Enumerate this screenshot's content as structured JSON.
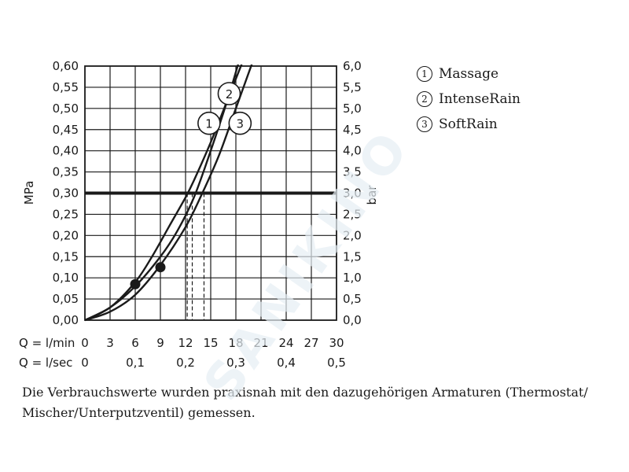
{
  "chart_data": {
    "type": "line",
    "left_axis": {
      "label": "MPa",
      "range": [
        0,
        0.6
      ],
      "ticks": [
        "0,00",
        "0,05",
        "0,10",
        "0,15",
        "0,20",
        "0,25",
        "0,30",
        "0,35",
        "0,40",
        "0,45",
        "0,50",
        "0,55",
        "0,60"
      ]
    },
    "right_axis": {
      "label": "bar",
      "range": [
        0,
        6
      ],
      "ticks": [
        "0,0",
        "0,5",
        "1,0",
        "1,5",
        "2,0",
        "2,5",
        "3,0",
        "3,5",
        "4,0",
        "4,5",
        "5,0",
        "5,5",
        "6,0"
      ]
    },
    "x_axis": {
      "label": "Q = l/min",
      "range": [
        0,
        30
      ],
      "ticks": [
        "0",
        "3",
        "6",
        "9",
        "12",
        "15",
        "18",
        "21",
        "24",
        "27",
        "30"
      ]
    },
    "x_axis_secondary": {
      "label": "Q = l/sec",
      "ticks": [
        {
          "value": 0,
          "label": "0"
        },
        {
          "value": 6,
          "label": "0,1"
        },
        {
          "value": 12,
          "label": "0,2"
        },
        {
          "value": 18,
          "label": "0,3"
        },
        {
          "value": 24,
          "label": "0,4"
        },
        {
          "value": 30,
          "label": "0,5"
        }
      ]
    },
    "reference_line": {
      "y": 0.3
    },
    "series": [
      {
        "name": "Massage",
        "marker": "1",
        "x": [
          0,
          3,
          6,
          8,
          10,
          12,
          13,
          15,
          17,
          19
        ],
        "y": [
          0,
          0.03,
          0.09,
          0.15,
          0.22,
          0.29,
          0.33,
          0.42,
          0.52,
          0.62
        ]
      },
      {
        "name": "IntenseRain",
        "marker": "2",
        "x": [
          0,
          3,
          6,
          9,
          11,
          13,
          15,
          17,
          18.5
        ],
        "y": [
          0,
          0.03,
          0.08,
          0.15,
          0.21,
          0.29,
          0.4,
          0.52,
          0.62
        ]
      },
      {
        "name": "SoftRain",
        "marker": "3",
        "x": [
          0,
          3,
          6,
          9,
          12,
          14,
          16,
          18,
          20
        ],
        "y": [
          0,
          0.02,
          0.06,
          0.13,
          0.22,
          0.3,
          0.39,
          0.5,
          0.61
        ]
      }
    ],
    "points": [
      {
        "x": 6,
        "y": 0.085
      },
      {
        "x": 9,
        "y": 0.125
      }
    ],
    "drop_lines": [
      {
        "x": 12.2,
        "y": 0.3
      },
      {
        "x": 12.8,
        "y": 0.3
      },
      {
        "x": 14.2,
        "y": 0.3
      }
    ],
    "curve_labels": [
      {
        "text": "1",
        "x": 14.8,
        "y": 0.465
      },
      {
        "text": "2",
        "x": 17.2,
        "y": 0.535
      },
      {
        "text": "3",
        "x": 18.5,
        "y": 0.465
      }
    ],
    "grid": true
  },
  "legend": {
    "items": [
      {
        "num": "1",
        "label": "Massage"
      },
      {
        "num": "2",
        "label": "IntenseRain"
      },
      {
        "num": "3",
        "label": "SoftRain"
      }
    ]
  },
  "footer": {
    "line1": "Die Verbrauchswerte wurden praxisnah mit den dazugehörigen Armaturen (Thermostat/",
    "line2": "Mischer/Unterputzventil) gemessen."
  },
  "watermark": {
    "text": "SANIKINO"
  }
}
